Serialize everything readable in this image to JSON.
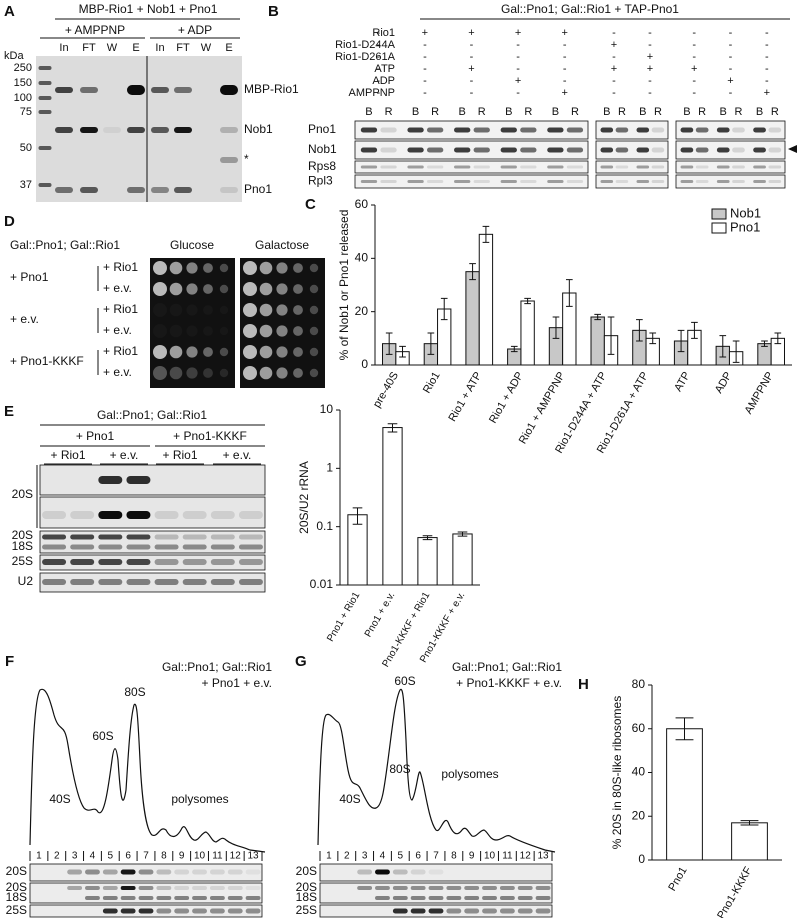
{
  "panel_a": {
    "letter": "A",
    "title": "MBP-Rio1 + Nob1 + Pno1",
    "groups": [
      "+ AMPPNP",
      "+ ADP"
    ],
    "lanes": [
      "In",
      "FT",
      "W",
      "E",
      "In",
      "FT",
      "W",
      "E"
    ],
    "unit": "kDa",
    "markers": [
      "250",
      "150",
      "100",
      "75",
      "50",
      "37"
    ],
    "bands": [
      "MBP-Rio1",
      "Nob1",
      "*",
      "Pno1"
    ]
  },
  "panel_b": {
    "letter": "B",
    "title": "Gal::Pno1; Gal::Rio1 + TAP-Pno1",
    "conditions": [
      {
        "label": "Rio1",
        "signs": [
          "-",
          "+",
          "+",
          "+",
          "+",
          "-",
          "-",
          "-",
          "-",
          "-"
        ]
      },
      {
        "label": "Rio1-D244A",
        "signs": [
          "-",
          "-",
          "-",
          "-",
          "-",
          "+",
          "-",
          "-",
          "-",
          "-"
        ]
      },
      {
        "label": "Rio1-D261A",
        "signs": [
          "-",
          "-",
          "-",
          "-",
          "-",
          "-",
          "+",
          "-",
          "-",
          "-"
        ]
      },
      {
        "label": "ATP",
        "signs": [
          "-",
          "-",
          "+",
          "-",
          "-",
          "+",
          "+",
          "+",
          "-",
          "-"
        ]
      },
      {
        "label": "ADP",
        "signs": [
          "-",
          "-",
          "-",
          "+",
          "-",
          "-",
          "-",
          "-",
          "+",
          "-"
        ]
      },
      {
        "label": "AMPPNP",
        "signs": [
          "-",
          "-",
          "-",
          "-",
          "+",
          "-",
          "-",
          "-",
          "-",
          "+"
        ]
      }
    ],
    "lanes": [
      "B",
      "R"
    ],
    "blots": [
      "Pno1",
      "Nob1",
      "Rps8",
      "Rpl3"
    ]
  },
  "panel_d": {
    "letter": "D",
    "strain": "Gal::Pno1; Gal::Rio1",
    "media": [
      "Glucose",
      "Galactose"
    ],
    "rows": [
      {
        "plasmid": "+ Pno1",
        "subrows": [
          "+ Rio1",
          "+ e.v."
        ]
      },
      {
        "plasmid": "+ e.v.",
        "subrows": [
          "+ Rio1",
          "+ e.v."
        ]
      },
      {
        "plasmid": "+ Pno1-KKKF",
        "subrows": [
          "+ Rio1",
          "+ e.v."
        ]
      }
    ]
  },
  "panel_e": {
    "letter": "E",
    "strain": "Gal::Pno1; Gal::Rio1",
    "groups": [
      "+ Pno1",
      "+ Pno1-KKKF"
    ],
    "subgroups": [
      "+ Rio1",
      "+ e.v."
    ],
    "rows": [
      "20S",
      "20S",
      "18S",
      "25S",
      "U2"
    ]
  },
  "panel_f": {
    "letter": "F",
    "strain": "Gal::Pno1; Gal::Rio1",
    "construct": "+ Pno1 + e.v.",
    "peaks": [
      "40S",
      "60S",
      "80S",
      "polysomes"
    ],
    "fractions": [
      1,
      2,
      3,
      4,
      5,
      6,
      7,
      8,
      9,
      10,
      11,
      12,
      13
    ],
    "rows": [
      "20S",
      "20S",
      "18S",
      "25S"
    ]
  },
  "panel_g": {
    "letter": "G",
    "strain": "Gal::Pno1; Gal::Rio1",
    "construct": "+ Pno1-KKKF + e.v.",
    "peaks": [
      "40S",
      "60S",
      "80S",
      "polysomes"
    ],
    "fractions": [
      1,
      2,
      3,
      4,
      5,
      6,
      7,
      8,
      9,
      10,
      11,
      12,
      13
    ],
    "rows": [
      "20S",
      "20S",
      "18S",
      "25S"
    ]
  },
  "chart_data": [
    {
      "panel": "C",
      "type": "bar",
      "ylabel": "% of Nob1 or Pno1 released",
      "categories": [
        "pre-40S",
        "Rio1",
        "Rio1 + ATP",
        "Rio1 + ADP",
        "Rio1 + AMPPNP",
        "Rio1-D244A + ATP",
        "Rio1-D261A + ATP",
        "ATP",
        "ADP",
        "AMPPNP"
      ],
      "series": [
        {
          "name": "Nob1",
          "color": "#c8c8c8",
          "values": [
            8,
            8,
            35,
            6,
            14,
            18,
            13,
            9,
            7,
            8
          ],
          "errors": [
            4,
            4,
            3,
            1,
            4,
            1,
            4,
            4,
            4,
            1
          ]
        },
        {
          "name": "Pno1",
          "color": "#ffffff",
          "values": [
            5,
            21,
            49,
            24,
            27,
            11,
            10,
            13,
            5,
            10
          ],
          "errors": [
            2,
            4,
            3,
            1,
            5,
            7,
            2,
            3,
            4,
            2
          ]
        }
      ],
      "ylim": [
        0,
        60
      ],
      "yticks": [
        0,
        20,
        40,
        60
      ],
      "legend": "upper right"
    },
    {
      "type": "bar",
      "ylabel": "20S/U2 rRNA",
      "categories": [
        "Pno1 + Rio1",
        "Pno1 + e.v.",
        "Pno1-KKKF + Rio1",
        "Pno1-KKKF + e.v."
      ],
      "values": [
        0.16,
        5,
        0.065,
        0.075
      ],
      "errors": [
        0.05,
        0.8,
        0.005,
        0.006
      ],
      "color": "#ffffff",
      "log": true,
      "ylim": [
        0.01,
        10
      ],
      "yticks": [
        0.01,
        0.1,
        1,
        10
      ]
    },
    {
      "panel": "H",
      "type": "bar",
      "ylabel": "% 20S in 80S-like ribosomes",
      "categories": [
        "Pno1",
        "Pno1-KKKF"
      ],
      "values": [
        60,
        17
      ],
      "errors": [
        5,
        1
      ],
      "color": "#ffffff",
      "ylim": [
        0,
        80
      ],
      "yticks": [
        0,
        20,
        40,
        60,
        80
      ]
    }
  ]
}
